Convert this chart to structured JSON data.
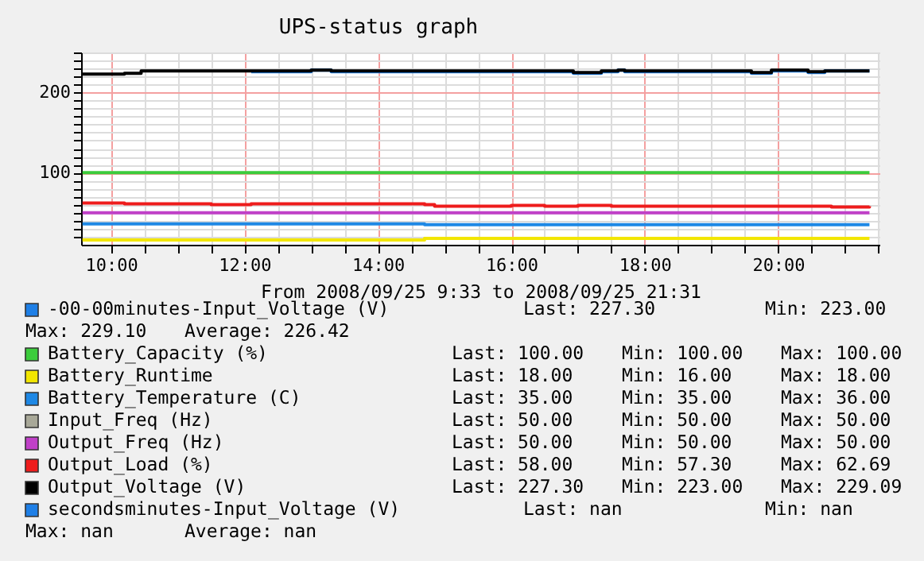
{
  "chart_data": {
    "type": "step",
    "title": "UPS-status graph",
    "xlabel": "From 2008/09/25 9:33 to 2008/09/25 21:31",
    "xlim": [
      9.55,
      21.52
    ],
    "ylim": [
      10,
      250
    ],
    "xticks": [
      {
        "value": 10,
        "label": "10:00"
      },
      {
        "value": 10.5,
        "label": null
      },
      {
        "value": 11,
        "label": null
      },
      {
        "value": 11.5,
        "label": null
      },
      {
        "value": 12,
        "label": "12:00"
      },
      {
        "value": 12.5,
        "label": null
      },
      {
        "value": 13,
        "label": null
      },
      {
        "value": 13.5,
        "label": null
      },
      {
        "value": 14,
        "label": "14:00"
      },
      {
        "value": 14.5,
        "label": null
      },
      {
        "value": 15,
        "label": null
      },
      {
        "value": 15.5,
        "label": null
      },
      {
        "value": 16,
        "label": "16:00"
      },
      {
        "value": 16.5,
        "label": null
      },
      {
        "value": 17,
        "label": null
      },
      {
        "value": 17.5,
        "label": null
      },
      {
        "value": 18,
        "label": "18:00"
      },
      {
        "value": 18.5,
        "label": null
      },
      {
        "value": 19,
        "label": null
      },
      {
        "value": 19.5,
        "label": null
      },
      {
        "value": 20,
        "label": "20:00"
      },
      {
        "value": 20.5,
        "label": null
      },
      {
        "value": 21,
        "label": null
      },
      {
        "value": 21.5,
        "label": null
      }
    ],
    "yticks": [
      {
        "value": 20,
        "label": null
      },
      {
        "value": 30,
        "label": null
      },
      {
        "value": 40,
        "label": null
      },
      {
        "value": 50,
        "label": null
      },
      {
        "value": 60,
        "label": null
      },
      {
        "value": 70,
        "label": null
      },
      {
        "value": 80,
        "label": null
      },
      {
        "value": 90,
        "label": null
      },
      100,
      {
        "value": 110,
        "label": null
      },
      {
        "value": 120,
        "label": null
      },
      {
        "value": 130,
        "label": null
      },
      {
        "value": 140,
        "label": null
      },
      {
        "value": 150,
        "label": null
      },
      {
        "value": 160,
        "label": null
      },
      {
        "value": 170,
        "label": null
      },
      {
        "value": 180,
        "label": null
      },
      {
        "value": 190,
        "label": null
      },
      200,
      {
        "value": 210,
        "label": null
      },
      {
        "value": 220,
        "label": null
      },
      {
        "value": 230,
        "label": null
      },
      {
        "value": 240,
        "label": null
      },
      {
        "value": 250,
        "label": null
      }
    ],
    "grid": true,
    "legend": "bottom",
    "series": [
      {
        "name": "-00-00minutes-Input_Voltage (V)",
        "color": "#1e7fe6",
        "x": [
          12.1,
          13.0,
          13.3,
          15.5,
          16.93,
          17.35,
          17.6,
          17.7,
          19.6,
          19.9,
          20.45,
          20.7,
          21.37
        ],
        "values": [
          226,
          228,
          226,
          226,
          224,
          226,
          228,
          226,
          224,
          227,
          225,
          227,
          227
        ]
      },
      {
        "name": "Battery_Capacity (%)",
        "color": "#3ccc3c",
        "x": [
          9.57,
          21.37
        ],
        "values": [
          100,
          100
        ]
      },
      {
        "name": "Battery_Runtime",
        "color": "#f2e600",
        "x": [
          9.57,
          14.7,
          21.37
        ],
        "values": [
          16,
          18,
          18
        ]
      },
      {
        "name": "Battery_Temperature (C)",
        "color": "#1e88e5",
        "x": [
          9.57,
          14.7,
          21.37
        ],
        "values": [
          36,
          35,
          35
        ]
      },
      {
        "name": "Input_Freq (Hz)",
        "color": "#a8a898"
      },
      {
        "name": "Output_Freq (Hz)",
        "color": "#c040c8",
        "x": [
          9.57,
          21.37
        ],
        "values": [
          50,
          50
        ]
      },
      {
        "name": "Output_Load (%)",
        "color": "#ee1c1c",
        "x": [
          9.57,
          10.2,
          11.2,
          11.5,
          12.1,
          13.3,
          14.7,
          14.85,
          15.6,
          16.0,
          16.5,
          17.0,
          17.5,
          20.5,
          20.8,
          21.37
        ],
        "values": [
          62,
          61,
          61,
          60,
          61,
          61,
          60,
          58,
          58,
          59,
          58,
          59,
          58,
          58,
          57,
          58
        ]
      },
      {
        "name": "Output_Voltage (V)",
        "color": "#000000",
        "x": [
          9.57,
          10.2,
          10.45,
          12.1,
          13.0,
          13.3,
          15.5,
          16.93,
          17.35,
          17.6,
          17.7,
          19.6,
          19.9,
          20.45,
          20.7,
          21.37
        ],
        "values": [
          223,
          224,
          227,
          227,
          228,
          227,
          227,
          225,
          227,
          228,
          227,
          225,
          228,
          226,
          227,
          227
        ]
      },
      {
        "name": "secondsminutes-Input_Voltage (V)",
        "color": "#1e7fe6"
      }
    ],
    "annotations": [
      "Last: 227.30          Min: 223.00          Max: 229.10   Average: 226.42",
      "Last: 100.00   Min: 100.00   Max: 100.00",
      "Last:  18.00   Min:  16.00   Max:  18.00",
      "Last:  35.00   Min:  35.00   Max:  36.00",
      "Last:  50.00   Min:  50.00   Max:  50.00",
      "Last:  50.00   Min:  50.00   Max:  50.00",
      "Last:  58.00   Min:  57.30   Max:  62.69",
      "Last: 227.30   Min: 223.00   Max: 229.09",
      "Last:    nan          Min:    nan          Max:    nan   Average:    nan"
    ]
  }
}
